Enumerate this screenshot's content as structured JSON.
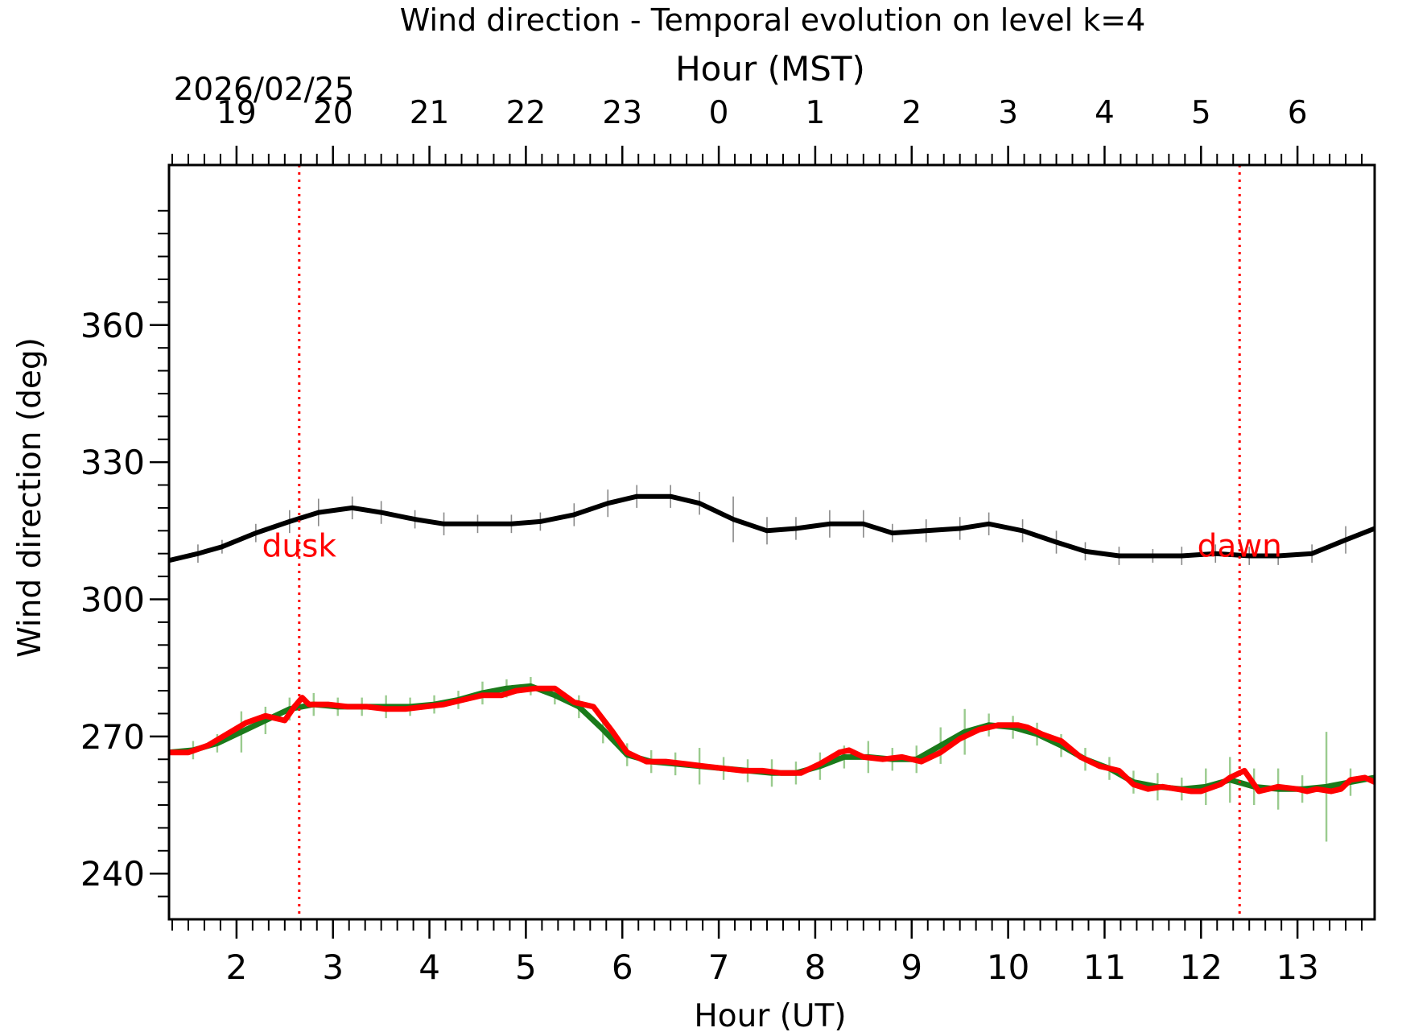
{
  "chart_data": {
    "type": "line",
    "title": "Wind direction - Temporal evolution on level k=4",
    "xlabel": "Hour (UT)",
    "ylabel": "Wind direction (deg)",
    "top_xlabel": "Hour (MST)",
    "date_label": "2026/02/25",
    "xlim": [
      1.3,
      13.8
    ],
    "ylim": [
      230,
      395
    ],
    "x_ticks": [
      2,
      3,
      4,
      5,
      6,
      7,
      8,
      9,
      10,
      11,
      12,
      13
    ],
    "x_tick_labels": [
      "2",
      "3",
      "4",
      "5",
      "6",
      "7",
      "8",
      "9",
      "10",
      "11",
      "12",
      "13"
    ],
    "y_ticks": [
      240,
      270,
      300,
      330,
      360
    ],
    "y_tick_labels": [
      "240",
      "270",
      "300",
      "330",
      "360"
    ],
    "top_tick_labels": [
      "19",
      "20",
      "21",
      "22",
      "23",
      "0",
      "1",
      "2",
      "3",
      "4",
      "5",
      "6"
    ],
    "mst_offset_hours": -7,
    "grid": false,
    "annotations": [
      {
        "text": "dusk",
        "x": 2.65,
        "y": 312,
        "color": "#ff0000"
      },
      {
        "text": "dawn",
        "x": 12.4,
        "y": 312,
        "color": "#ff0000"
      }
    ],
    "vlines": [
      {
        "x": 2.65,
        "color": "#ff0000",
        "style": "dotted"
      },
      {
        "x": 12.4,
        "color": "#ff0000",
        "style": "dotted"
      }
    ],
    "series": [
      {
        "color": "#000000",
        "x": [
          1.3,
          1.6,
          1.85,
          2.2,
          2.55,
          2.85,
          3.2,
          3.5,
          3.85,
          4.15,
          4.5,
          4.85,
          5.15,
          5.5,
          5.85,
          6.15,
          6.5,
          6.8,
          7.15,
          7.5,
          7.8,
          8.15,
          8.5,
          8.8,
          9.15,
          9.5,
          9.8,
          10.15,
          10.5,
          10.8,
          11.15,
          11.5,
          11.8,
          12.15,
          12.5,
          12.8,
          13.15,
          13.5,
          13.8
        ],
        "y": [
          308.5,
          310,
          311.5,
          314.5,
          317,
          319,
          320,
          319,
          317.5,
          316.5,
          316.5,
          316.5,
          317,
          318.5,
          321,
          322.5,
          322.5,
          321,
          317.5,
          315,
          315.5,
          316.5,
          316.5,
          314.5,
          315,
          315.5,
          316.5,
          315,
          312.5,
          310.5,
          309.5,
          309.5,
          309.5,
          310,
          309.5,
          309.5,
          310,
          313,
          315.5
        ],
        "err": [
          1.5,
          2,
          1.5,
          2,
          2.5,
          3,
          2.5,
          2.5,
          2,
          2.5,
          2,
          2,
          2,
          2.5,
          3,
          2.5,
          2.5,
          2.5,
          5,
          3,
          2.5,
          3,
          3,
          2,
          2.5,
          2.5,
          2.5,
          2.5,
          2.5,
          2,
          2,
          1.5,
          2,
          2,
          2,
          2,
          2,
          3,
          3
        ]
      },
      {
        "color": "#1a7a1a",
        "x": [
          1.3,
          1.55,
          1.8,
          2.05,
          2.3,
          2.55,
          2.8,
          3.05,
          3.3,
          3.55,
          3.8,
          4.05,
          4.3,
          4.55,
          4.8,
          5.05,
          5.3,
          5.55,
          5.8,
          6.05,
          6.3,
          6.55,
          6.8,
          7.05,
          7.3,
          7.55,
          7.8,
          8.05,
          8.3,
          8.55,
          8.8,
          9.05,
          9.3,
          9.55,
          9.8,
          10.05,
          10.3,
          10.55,
          10.8,
          11.05,
          11.3,
          11.55,
          11.8,
          12.05,
          12.3,
          12.55,
          12.8,
          13.05,
          13.3,
          13.55,
          13.8
        ],
        "y": [
          266.5,
          267,
          268.5,
          271,
          273.5,
          276,
          277,
          276.5,
          276.5,
          276.5,
          276.5,
          277,
          278,
          279.5,
          280.5,
          281,
          279,
          276.5,
          271.5,
          266,
          264.5,
          264,
          263.5,
          263,
          262.5,
          262,
          262,
          263.5,
          265.5,
          265.5,
          265,
          265,
          268,
          271,
          272.5,
          272,
          270.5,
          268,
          265,
          263,
          260,
          259,
          258.5,
          259,
          260.5,
          259,
          258.5,
          258.5,
          259,
          260,
          261
        ],
        "err": [
          3,
          2,
          2,
          4.5,
          3,
          2.5,
          2.5,
          2,
          2,
          2.5,
          2,
          2,
          2,
          2.5,
          2,
          2,
          2,
          2.5,
          3,
          2.5,
          2.5,
          2.5,
          4,
          2.5,
          2.5,
          3,
          2.5,
          3,
          2.5,
          3.5,
          2.5,
          3,
          4,
          5,
          2.5,
          2.5,
          2.5,
          2.5,
          2.5,
          2.5,
          2.5,
          3,
          2.5,
          4,
          5,
          4,
          4.5,
          3,
          12,
          3,
          2.5
        ]
      },
      {
        "color": "#ff0000",
        "x": [
          1.3,
          1.5,
          1.7,
          1.9,
          2.1,
          2.3,
          2.5,
          2.6,
          2.68,
          2.75,
          2.95,
          3.15,
          3.35,
          3.55,
          3.75,
          3.95,
          4.15,
          4.35,
          4.55,
          4.75,
          4.9,
          5.1,
          5.3,
          5.5,
          5.7,
          5.9,
          6.05,
          6.25,
          6.45,
          6.65,
          6.85,
          7.05,
          7.25,
          7.45,
          7.65,
          7.85,
          8.05,
          8.25,
          8.35,
          8.5,
          8.7,
          8.9,
          9.1,
          9.3,
          9.5,
          9.7,
          9.9,
          10.1,
          10.2,
          10.35,
          10.55,
          10.75,
          10.95,
          11.15,
          11.3,
          11.45,
          11.6,
          11.75,
          11.9,
          12.0,
          12.2,
          12.3,
          12.45,
          12.6,
          12.8,
          13.0,
          13.1,
          13.2,
          13.35,
          13.45,
          13.55,
          13.7,
          13.8
        ],
        "y": [
          266.5,
          266.5,
          268,
          270.5,
          273,
          274.5,
          273.5,
          276.5,
          278.5,
          277,
          277,
          276.5,
          276.5,
          276,
          276,
          276.5,
          277,
          278,
          279,
          279,
          280,
          280.5,
          280.5,
          277.5,
          276.5,
          271,
          266.5,
          264.5,
          264.5,
          264,
          263.5,
          263,
          262.5,
          262.5,
          262,
          262,
          264,
          266.5,
          267,
          265.5,
          265,
          265.5,
          264.5,
          266.5,
          269.5,
          271.5,
          272.5,
          272.5,
          272,
          270.5,
          269,
          265.5,
          263.5,
          262.5,
          259.5,
          258.5,
          259,
          258.5,
          258,
          258,
          259.5,
          261,
          262.5,
          258,
          259,
          258.5,
          258,
          258.5,
          258,
          258.5,
          260.5,
          261,
          260
        ]
      }
    ]
  }
}
